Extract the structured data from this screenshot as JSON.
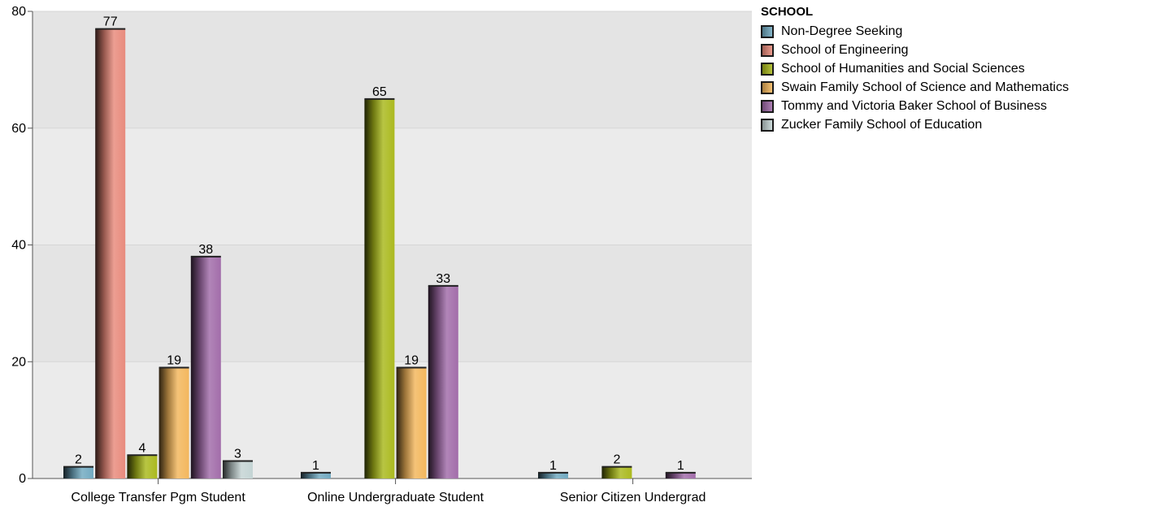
{
  "chart_data": {
    "type": "bar",
    "categories": [
      "College Transfer Pgm Student",
      "Online Undergraduate Student",
      "Senior Citizen Undergrad"
    ],
    "series": [
      {
        "name": "Non-Degree Seeking",
        "values": [
          2,
          1,
          1
        ],
        "color": "#6fa8c0"
      },
      {
        "name": "School of Engineering",
        "values": [
          77,
          null,
          null
        ],
        "color": "#e8897a"
      },
      {
        "name": "School of Humanities and Social Sciences",
        "values": [
          4,
          65,
          2
        ],
        "color": "#a9b81a"
      },
      {
        "name": "Swain Family School of Science and Mathematics",
        "values": [
          19,
          19,
          null
        ],
        "color": "#f3b65a"
      },
      {
        "name": "Tommy and Victoria Baker School of Business",
        "values": [
          38,
          33,
          1
        ],
        "color": "#a06aa8"
      },
      {
        "name": "Zucker Family School of Education",
        "values": [
          3,
          null,
          null
        ],
        "color": "#c3d3d3"
      }
    ],
    "legend_title": "SCHOOL",
    "legend_position": "top-right",
    "ylim": [
      0,
      80
    ],
    "yticks": [
      0,
      20,
      40,
      60,
      80
    ],
    "grid": true
  }
}
